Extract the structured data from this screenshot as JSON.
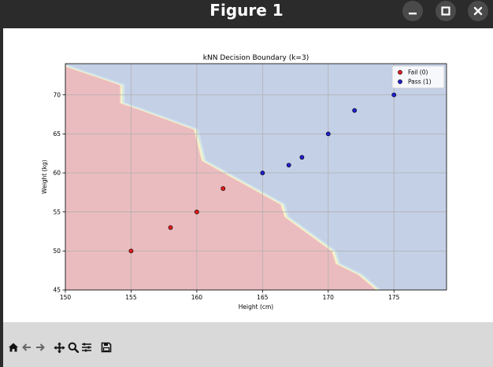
{
  "window": {
    "title": "Figure 1"
  },
  "toolbar": {
    "icons": [
      "home-icon",
      "back-arrow-icon",
      "forward-arrow-icon",
      "pan-icon",
      "zoom-icon",
      "configure-subplots-icon",
      "save-icon"
    ]
  },
  "colors": {
    "fail_region": "#ebbcbf",
    "pass_region": "#c4d0e6",
    "fail_point": "#e41a1c",
    "pass_point": "#1f1fd0",
    "grid": "#b0b0b0"
  },
  "chart_data": {
    "type": "scatter",
    "title": "kNN Decision Boundary (k=3)",
    "xlabel": "Height (cm)",
    "ylabel": "Weight (kg)",
    "xlim": [
      150,
      179
    ],
    "ylim": [
      45,
      74
    ],
    "xticks": [
      150,
      155,
      160,
      165,
      170,
      175
    ],
    "yticks": [
      45,
      50,
      55,
      60,
      65,
      70
    ],
    "grid": true,
    "legend_position": "top-right",
    "series": [
      {
        "name": "Fail (0)",
        "x": [
          155,
          158,
          160,
          162
        ],
        "y": [
          50,
          53,
          55,
          58
        ]
      },
      {
        "name": "Pass (1)",
        "x": [
          165,
          167,
          168,
          170,
          172,
          175
        ],
        "y": [
          60,
          61,
          62,
          65,
          68,
          70
        ]
      }
    ],
    "decision_boundary": [
      [
        150,
        73.7
      ],
      [
        154.2,
        71.3
      ],
      [
        154.2,
        69
      ],
      [
        155.9,
        68
      ],
      [
        159.8,
        65.6
      ],
      [
        160.4,
        61.6
      ],
      [
        166.4,
        56
      ],
      [
        166.7,
        54.4
      ],
      [
        170.3,
        50
      ],
      [
        170.6,
        48.4
      ],
      [
        172.3,
        47
      ],
      [
        173.7,
        45
      ]
    ]
  }
}
